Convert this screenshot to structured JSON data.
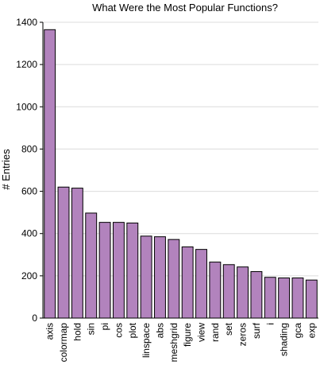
{
  "chart_data": {
    "type": "bar",
    "title": "What Were the Most Popular Functions?",
    "xlabel": "",
    "ylabel": "# Entries",
    "categories": [
      "axis",
      "colormap",
      "hold",
      "sin",
      "pi",
      "cos",
      "plot",
      "linspace",
      "abs",
      "meshgrid",
      "figure",
      "view",
      "rand",
      "set",
      "zeros",
      "surf",
      "i",
      "shading",
      "gca",
      "exp"
    ],
    "values": [
      1365,
      620,
      615,
      497,
      453,
      453,
      450,
      388,
      385,
      372,
      337,
      325,
      265,
      253,
      242,
      220,
      193,
      190,
      190,
      180
    ],
    "ylim": [
      0,
      1400
    ],
    "yticks": [
      0,
      200,
      400,
      600,
      800,
      1000,
      1200,
      1400
    ],
    "grid": true,
    "legend": "none",
    "bar_color": "#b283bd",
    "bar_edge_color": "#000000"
  }
}
